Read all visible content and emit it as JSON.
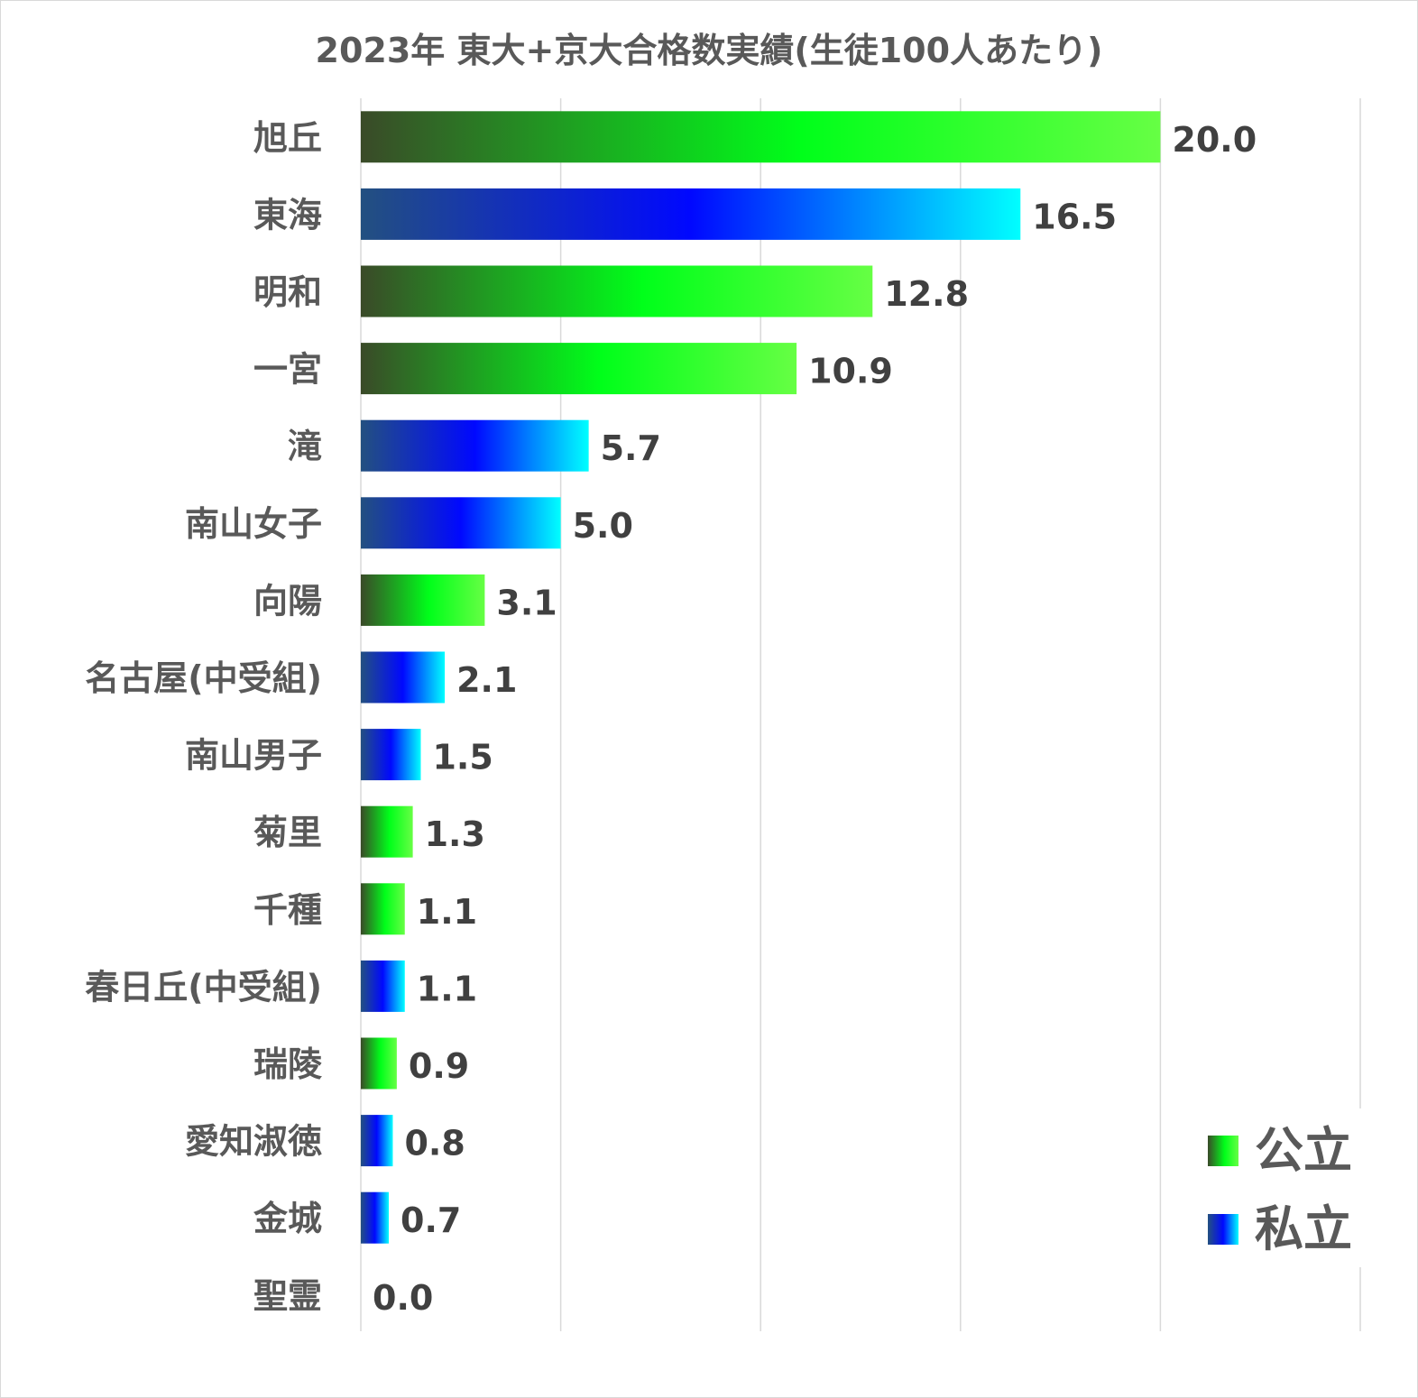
{
  "chart_data": {
    "type": "bar",
    "orientation": "horizontal",
    "title": "2023年 東大+京大合格数実績(生徒100人あたり)",
    "categories": [
      "旭丘",
      "東海",
      "明和",
      "一宮",
      "滝",
      "南山女子",
      "向陽",
      "名古屋(中受組)",
      "南山男子",
      "菊里",
      "千種",
      "春日丘(中受組)",
      "瑞陵",
      "愛知淑徳",
      "金城",
      "聖霊"
    ],
    "values": [
      20.0,
      16.5,
      12.8,
      10.9,
      5.7,
      5.0,
      3.1,
      2.1,
      1.5,
      1.3,
      1.1,
      1.1,
      0.9,
      0.8,
      0.7,
      0.0
    ],
    "value_labels": [
      "20.0",
      "16.5",
      "12.8",
      "10.9",
      "5.7",
      "5.0",
      "3.1",
      "2.1",
      "1.5",
      "1.3",
      "1.1",
      "1.1",
      "0.9",
      "0.8",
      "0.7",
      "0.0"
    ],
    "groups": [
      "公立",
      "私立",
      "公立",
      "公立",
      "私立",
      "私立",
      "公立",
      "私立",
      "私立",
      "公立",
      "公立",
      "私立",
      "公立",
      "私立",
      "私立",
      "私立"
    ],
    "xlim": [
      0,
      25
    ],
    "grid": true,
    "legend": {
      "position": "bottom-right",
      "entries": [
        {
          "name": "公立",
          "colors": [
            "#3a4a28",
            "#00ff1a",
            "#66ff44"
          ]
        },
        {
          "name": "私立",
          "colors": [
            "#235080",
            "#0008ff",
            "#00ffff"
          ]
        }
      ]
    }
  }
}
